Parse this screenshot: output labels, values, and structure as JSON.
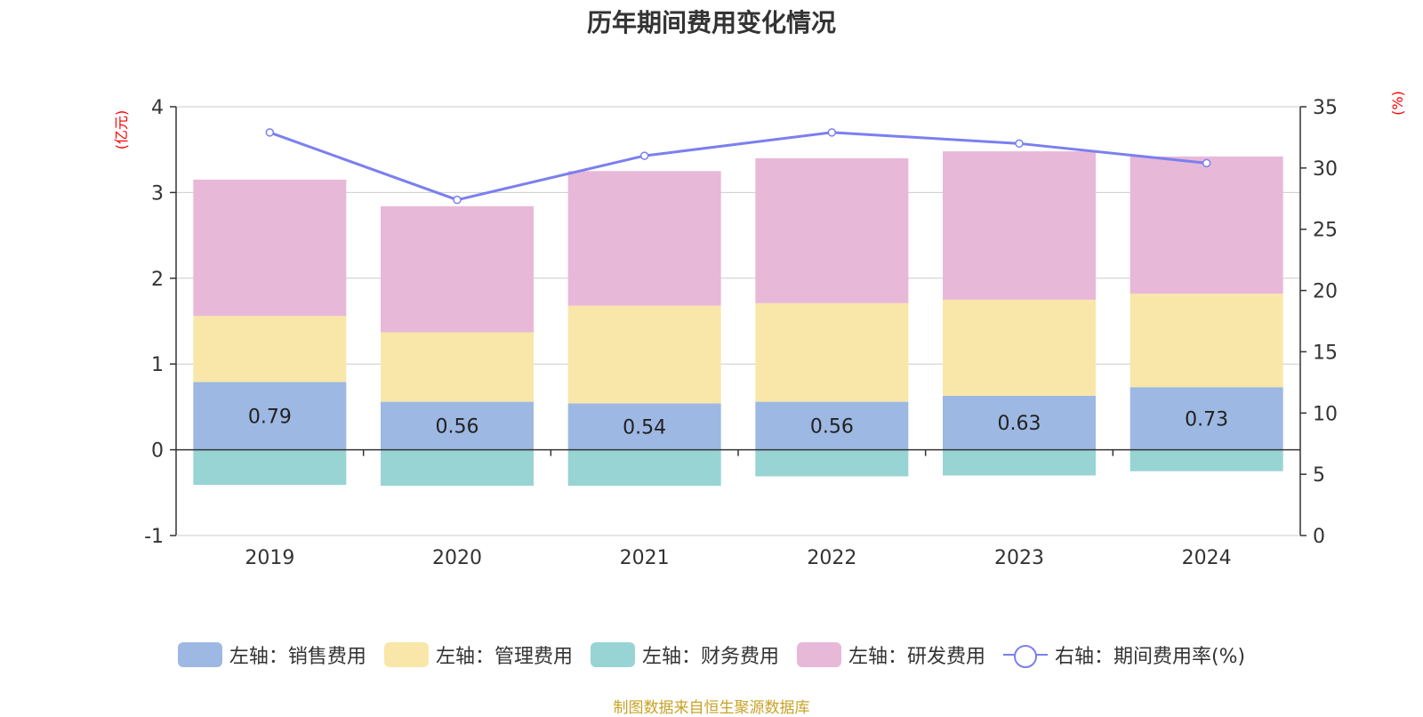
{
  "chart_data": {
    "type": "bar",
    "title": "历年期间费用变化情况",
    "categories": [
      "2019",
      "2020",
      "2021",
      "2022",
      "2023",
      "2024"
    ],
    "stacked": true,
    "series": [
      {
        "name": "左轴：销售费用",
        "axis": "left",
        "kind": "bar",
        "color": "#9db8e2",
        "values": [
          0.79,
          0.56,
          0.54,
          0.56,
          0.63,
          0.73
        ],
        "show_labels": true
      },
      {
        "name": "左轴：管理费用",
        "axis": "left",
        "kind": "bar",
        "color": "#f8e7a8",
        "values": [
          0.77,
          0.81,
          1.14,
          1.15,
          1.12,
          1.09
        ],
        "show_labels": false
      },
      {
        "name": "左轴：财务费用",
        "axis": "left",
        "kind": "bar",
        "color": "#98d4d4",
        "values": [
          -0.41,
          -0.42,
          -0.42,
          -0.31,
          -0.3,
          -0.25
        ],
        "show_labels": false
      },
      {
        "name": "左轴：研发费用",
        "axis": "left",
        "kind": "bar",
        "color": "#e8b8d8",
        "values": [
          1.59,
          1.47,
          1.57,
          1.69,
          1.73,
          1.6
        ],
        "show_labels": false
      },
      {
        "name": "右轴：期间费用率(%)",
        "axis": "right",
        "kind": "line",
        "color": "#7b7fef",
        "values": [
          32.9,
          27.4,
          31.0,
          32.9,
          32.0,
          30.4
        ]
      }
    ],
    "y_left": {
      "label": "(亿元)",
      "min": -1,
      "max": 4,
      "ticks": [
        -1,
        0,
        1,
        2,
        3,
        4
      ]
    },
    "y_right": {
      "label": "(%)",
      "min": 0,
      "max": 35,
      "ticks": [
        0,
        5,
        10,
        15,
        20,
        25,
        30,
        35
      ]
    },
    "grid": true,
    "legend_position": "bottom",
    "source_note": "制图数据来自恒生聚源数据库"
  }
}
